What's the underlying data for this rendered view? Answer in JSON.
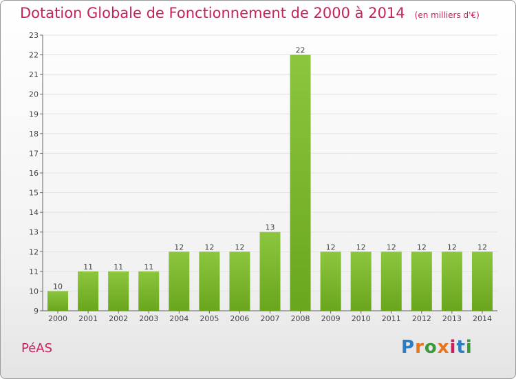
{
  "chart_data": {
    "type": "bar",
    "title": "Dotation Globale de Fonctionnement de 2000 à 2014",
    "unit": "(en milliers d'€)",
    "categories": [
      "2000",
      "2001",
      "2002",
      "2003",
      "2004",
      "2005",
      "2006",
      "2007",
      "2008",
      "2009",
      "2010",
      "2011",
      "2012",
      "2013",
      "2014"
    ],
    "values": [
      10,
      11,
      11,
      11,
      12,
      12,
      12,
      13,
      22,
      12,
      12,
      12,
      12,
      12,
      12
    ],
    "ylim": [
      9,
      23
    ],
    "yticks": [
      9,
      10,
      11,
      12,
      13,
      14,
      15,
      16,
      17,
      18,
      19,
      20,
      21,
      22,
      23
    ],
    "xlabel": "",
    "ylabel": "",
    "bar_color": "#8cc63f",
    "bar_color_dark": "#6aa51e"
  },
  "commune": "PéAS",
  "brand": {
    "letters": [
      "P",
      "r",
      "o",
      "x",
      "i",
      "t",
      "i"
    ],
    "colors": [
      "#2f7cc4",
      "#e8741c",
      "#3a9a3a",
      "#e8741c",
      "#c8205e",
      "#2f7cc4",
      "#3a9a3a"
    ]
  }
}
